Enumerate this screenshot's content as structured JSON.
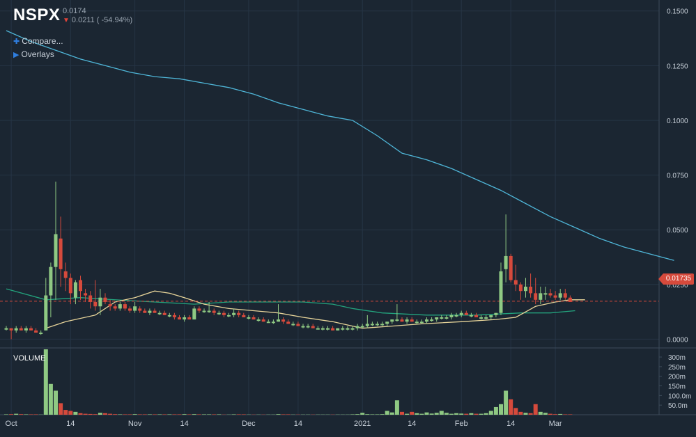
{
  "header": {
    "symbol": "NSPX",
    "last": "0.0174",
    "change": "0.0211 ( -54.94%)",
    "change_direction": "down"
  },
  "menu": {
    "compare": "Compare...",
    "overlays": "Overlays"
  },
  "volume_label": "VOLUME",
  "price_tag": "0.01735",
  "colors": {
    "background": "#1b2632",
    "up": "#8fc983",
    "down": "#d64a3c",
    "ma_long": "#4fb6d8",
    "ma_mid": "#23a37d",
    "ma_short": "#e8d59a",
    "grid": "#263545"
  },
  "chart_data": {
    "type": "candlestick",
    "price_axis": {
      "min": -0.004,
      "max": 0.155,
      "ticks": [
        "0.1500",
        "0.1250",
        "0.1000",
        "0.0750",
        "0.0500",
        "0.0250",
        "0.0000"
      ],
      "tick_values": [
        0.15,
        0.125,
        0.1,
        0.075,
        0.05,
        0.025,
        0
      ]
    },
    "volume_axis": {
      "max": 340,
      "ticks": [
        "300m",
        "250m",
        "200m",
        "150m",
        "100.0m",
        "50.0m"
      ],
      "tick_values": [
        300,
        250,
        200,
        150,
        100,
        50
      ]
    },
    "x_labels": [
      "Oct",
      "14",
      "Nov",
      "14",
      "Dec",
      "14",
      "2021",
      "14",
      "Feb",
      "14",
      "Mar"
    ],
    "x_label_idx": [
      1,
      13,
      26,
      36,
      49,
      59,
      72,
      82,
      92,
      102,
      111
    ],
    "last_price": 0.01735,
    "candles": [
      [
        0.005,
        0.006,
        0.004,
        0.005,
        2
      ],
      [
        0.005,
        0.005,
        0.0,
        0.004,
        3
      ],
      [
        0.004,
        0.006,
        0.003,
        0.005,
        5
      ],
      [
        0.005,
        0.006,
        0.004,
        0.004,
        3
      ],
      [
        0.004,
        0.006,
        0.003,
        0.005,
        2
      ],
      [
        0.005,
        0.006,
        0.004,
        0.004,
        2
      ],
      [
        0.004,
        0.005,
        0.003,
        0.003,
        2
      ],
      [
        0.003,
        0.004,
        0.002,
        0.003,
        1
      ],
      [
        0.004,
        0.028,
        0.004,
        0.02,
        340
      ],
      [
        0.02,
        0.035,
        0.01,
        0.033,
        160
      ],
      [
        0.033,
        0.072,
        0.018,
        0.048,
        125
      ],
      [
        0.046,
        0.056,
        0.024,
        0.032,
        60
      ],
      [
        0.031,
        0.035,
        0.022,
        0.028,
        25
      ],
      [
        0.028,
        0.03,
        0.016,
        0.021,
        20
      ],
      [
        0.019,
        0.027,
        0.016,
        0.026,
        15
      ],
      [
        0.027,
        0.029,
        0.018,
        0.022,
        8
      ],
      [
        0.021,
        0.023,
        0.017,
        0.02,
        5
      ],
      [
        0.02,
        0.022,
        0.014,
        0.017,
        4
      ],
      [
        0.017,
        0.027,
        0.013,
        0.015,
        3
      ],
      [
        0.015,
        0.023,
        0.011,
        0.019,
        10
      ],
      [
        0.019,
        0.021,
        0.016,
        0.017,
        8
      ],
      [
        0.016,
        0.018,
        0.013,
        0.015,
        5
      ],
      [
        0.015,
        0.016,
        0.013,
        0.014,
        3
      ],
      [
        0.014,
        0.017,
        0.013,
        0.016,
        2
      ],
      [
        0.016,
        0.017,
        0.013,
        0.014,
        2
      ],
      [
        0.014,
        0.015,
        0.012,
        0.013,
        2
      ],
      [
        0.013,
        0.017,
        0.012,
        0.015,
        3
      ],
      [
        0.014,
        0.015,
        0.012,
        0.013,
        2
      ],
      [
        0.013,
        0.014,
        0.012,
        0.012,
        2
      ],
      [
        0.012,
        0.014,
        0.011,
        0.013,
        2
      ],
      [
        0.013,
        0.014,
        0.012,
        0.012,
        2
      ],
      [
        0.012,
        0.013,
        0.011,
        0.012,
        2
      ],
      [
        0.012,
        0.013,
        0.011,
        0.011,
        2
      ],
      [
        0.011,
        0.012,
        0.01,
        0.011,
        2
      ],
      [
        0.011,
        0.012,
        0.009,
        0.01,
        2
      ],
      [
        0.01,
        0.011,
        0.009,
        0.009,
        2
      ],
      [
        0.009,
        0.011,
        0.008,
        0.01,
        3
      ],
      [
        0.01,
        0.011,
        0.009,
        0.009,
        2
      ],
      [
        0.009,
        0.015,
        0.009,
        0.014,
        3
      ],
      [
        0.014,
        0.015,
        0.012,
        0.013,
        2
      ],
      [
        0.013,
        0.014,
        0.012,
        0.013,
        2
      ],
      [
        0.013,
        0.017,
        0.012,
        0.013,
        2
      ],
      [
        0.013,
        0.014,
        0.011,
        0.012,
        2
      ],
      [
        0.012,
        0.013,
        0.011,
        0.012,
        2
      ],
      [
        0.012,
        0.013,
        0.01,
        0.011,
        1
      ],
      [
        0.011,
        0.012,
        0.01,
        0.011,
        1
      ],
      [
        0.011,
        0.014,
        0.01,
        0.012,
        2
      ],
      [
        0.012,
        0.013,
        0.01,
        0.011,
        2
      ],
      [
        0.011,
        0.012,
        0.01,
        0.01,
        2
      ],
      [
        0.01,
        0.011,
        0.009,
        0.01,
        1
      ],
      [
        0.01,
        0.011,
        0.009,
        0.009,
        1
      ],
      [
        0.009,
        0.01,
        0.008,
        0.009,
        1
      ],
      [
        0.009,
        0.01,
        0.008,
        0.008,
        1
      ],
      [
        0.008,
        0.009,
        0.008,
        0.008,
        1
      ],
      [
        0.008,
        0.009,
        0.007,
        0.008,
        1
      ],
      [
        0.008,
        0.016,
        0.008,
        0.009,
        3
      ],
      [
        0.009,
        0.01,
        0.007,
        0.008,
        2
      ],
      [
        0.008,
        0.009,
        0.007,
        0.007,
        2
      ],
      [
        0.007,
        0.008,
        0.006,
        0.007,
        1
      ],
      [
        0.007,
        0.008,
        0.006,
        0.006,
        1
      ],
      [
        0.006,
        0.007,
        0.005,
        0.006,
        1
      ],
      [
        0.006,
        0.007,
        0.005,
        0.006,
        1
      ],
      [
        0.006,
        0.007,
        0.005,
        0.005,
        1
      ],
      [
        0.005,
        0.006,
        0.005,
        0.005,
        1
      ],
      [
        0.005,
        0.006,
        0.004,
        0.005,
        1
      ],
      [
        0.005,
        0.006,
        0.004,
        0.005,
        1
      ],
      [
        0.005,
        0.006,
        0.004,
        0.004,
        1
      ],
      [
        0.004,
        0.005,
        0.004,
        0.005,
        1
      ],
      [
        0.005,
        0.006,
        0.004,
        0.005,
        1
      ],
      [
        0.005,
        0.006,
        0.004,
        0.005,
        1
      ],
      [
        0.005,
        0.006,
        0.004,
        0.005,
        2
      ],
      [
        0.005,
        0.007,
        0.004,
        0.006,
        3
      ],
      [
        0.006,
        0.007,
        0.005,
        0.006,
        10
      ],
      [
        0.006,
        0.011,
        0.005,
        0.007,
        3
      ],
      [
        0.007,
        0.008,
        0.006,
        0.007,
        2
      ],
      [
        0.007,
        0.008,
        0.006,
        0.007,
        2
      ],
      [
        0.007,
        0.008,
        0.006,
        0.007,
        3
      ],
      [
        0.007,
        0.008,
        0.006,
        0.008,
        20
      ],
      [
        0.008,
        0.009,
        0.007,
        0.009,
        12
      ],
      [
        0.009,
        0.016,
        0.008,
        0.009,
        75
      ],
      [
        0.009,
        0.01,
        0.008,
        0.008,
        15
      ],
      [
        0.008,
        0.01,
        0.007,
        0.009,
        5
      ],
      [
        0.009,
        0.01,
        0.008,
        0.008,
        15
      ],
      [
        0.008,
        0.009,
        0.007,
        0.008,
        8
      ],
      [
        0.008,
        0.009,
        0.007,
        0.008,
        5
      ],
      [
        0.008,
        0.01,
        0.007,
        0.009,
        12
      ],
      [
        0.009,
        0.01,
        0.008,
        0.009,
        6
      ],
      [
        0.009,
        0.01,
        0.008,
        0.01,
        10
      ],
      [
        0.01,
        0.011,
        0.009,
        0.01,
        20
      ],
      [
        0.01,
        0.011,
        0.009,
        0.01,
        10
      ],
      [
        0.01,
        0.012,
        0.009,
        0.011,
        5
      ],
      [
        0.011,
        0.012,
        0.01,
        0.011,
        8
      ],
      [
        0.011,
        0.013,
        0.01,
        0.012,
        6
      ],
      [
        0.012,
        0.013,
        0.011,
        0.011,
        5
      ],
      [
        0.011,
        0.012,
        0.01,
        0.011,
        8
      ],
      [
        0.011,
        0.012,
        0.01,
        0.01,
        5
      ],
      [
        0.01,
        0.011,
        0.009,
        0.01,
        5
      ],
      [
        0.01,
        0.011,
        0.009,
        0.01,
        8
      ],
      [
        0.01,
        0.011,
        0.009,
        0.011,
        20
      ],
      [
        0.011,
        0.012,
        0.01,
        0.012,
        40
      ],
      [
        0.012,
        0.035,
        0.011,
        0.031,
        55
      ],
      [
        0.032,
        0.057,
        0.026,
        0.038,
        125
      ],
      [
        0.038,
        0.039,
        0.026,
        0.027,
        80
      ],
      [
        0.027,
        0.034,
        0.022,
        0.025,
        35
      ],
      [
        0.025,
        0.026,
        0.018,
        0.022,
        15
      ],
      [
        0.022,
        0.028,
        0.019,
        0.024,
        10
      ],
      [
        0.024,
        0.03,
        0.019,
        0.021,
        8
      ],
      [
        0.021,
        0.028,
        0.016,
        0.018,
        55
      ],
      [
        0.018,
        0.024,
        0.016,
        0.021,
        15
      ],
      [
        0.021,
        0.024,
        0.018,
        0.021,
        10
      ],
      [
        0.021,
        0.023,
        0.019,
        0.02,
        5
      ],
      [
        0.02,
        0.022,
        0.018,
        0.019,
        3
      ],
      [
        0.019,
        0.023,
        0.018,
        0.021,
        4
      ],
      [
        0.021,
        0.023,
        0.018,
        0.019,
        2
      ],
      [
        0.019,
        0.02,
        0.017,
        0.017,
        2
      ]
    ],
    "ma_long": [
      0.141,
      0.136,
      0.132,
      0.128,
      0.125,
      0.122,
      0.12,
      0.119,
      0.117,
      0.115,
      0.112,
      0.108,
      0.105,
      0.102,
      0.1,
      0.093,
      0.085,
      0.082,
      0.078,
      0.073,
      0.068,
      0.062,
      0.056,
      0.051,
      0.046,
      0.042,
      0.039,
      0.036
    ],
    "ma_long_idx": [
      0,
      5,
      10,
      15,
      20,
      25,
      30,
      35,
      40,
      45,
      50,
      55,
      60,
      65,
      70,
      75,
      80,
      85,
      90,
      95,
      100,
      105,
      110,
      115,
      120,
      125,
      130,
      135
    ],
    "ma_mid": [
      0.023,
      0.018,
      0.019,
      0.018,
      0.017,
      0.016,
      0.017,
      0.017,
      0.017,
      0.016,
      0.014,
      0.012,
      0.011,
      0.011,
      0.012,
      0.012,
      0.013
    ],
    "ma_mid_idx": [
      0,
      8,
      15,
      22,
      30,
      38,
      45,
      52,
      60,
      66,
      70,
      76,
      85,
      95,
      104,
      110,
      115
    ],
    "ma_short": [
      0.005,
      0.008,
      0.011,
      0.017,
      0.019,
      0.022,
      0.021,
      0.019,
      0.016,
      0.014,
      0.013,
      0.012,
      0.01,
      0.008,
      0.006,
      0.005,
      0.006,
      0.007,
      0.008,
      0.009,
      0.01,
      0.015,
      0.017,
      0.018,
      0.018
    ],
    "ma_short_idx": [
      8,
      12,
      18,
      22,
      26,
      30,
      33,
      36,
      40,
      45,
      50,
      55,
      60,
      66,
      70,
      72,
      78,
      84,
      92,
      99,
      103,
      107,
      111,
      114,
      117
    ]
  }
}
